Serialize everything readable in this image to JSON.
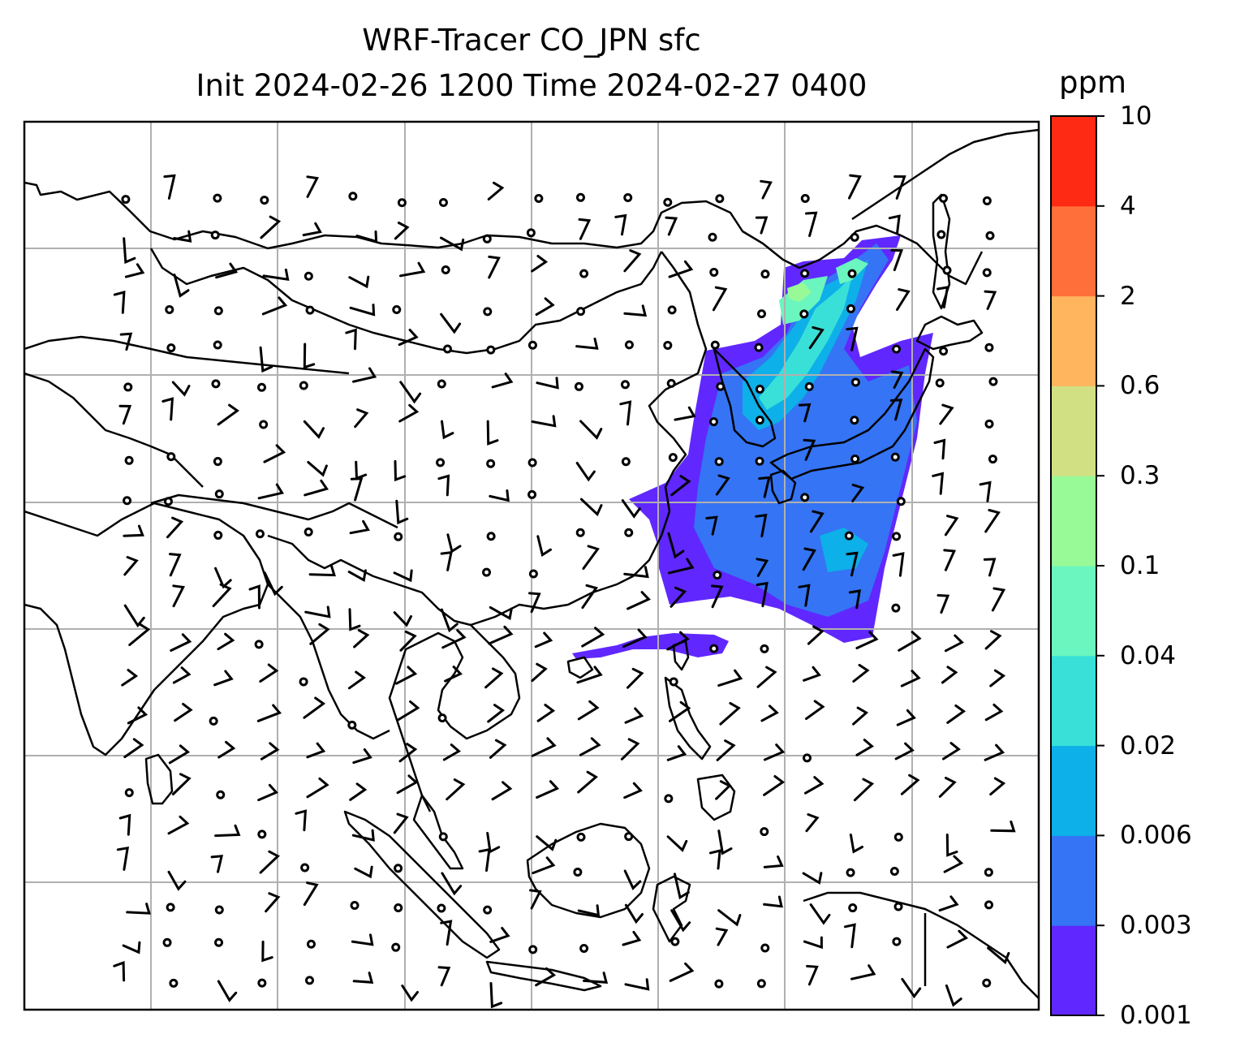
{
  "title": {
    "line1": "WRF-Tracer CO_JPN sfc",
    "line2": "Init 2024-02-26 1200 Time 2024-02-27 0400"
  },
  "colorbar": {
    "unit": "ppm",
    "levels": [
      "0.001",
      "0.003",
      "0.006",
      "0.02",
      "0.04",
      "0.1",
      "0.3",
      "0.6",
      "2",
      "4",
      "10"
    ],
    "colors": [
      "#6028ff",
      "#3574f4",
      "#0db0e8",
      "#38e0d8",
      "#6af6be",
      "#98fa96",
      "#d2e084",
      "#ffb45e",
      "#ff6f3a",
      "#ff2a14"
    ]
  },
  "map": {
    "gridlines": true,
    "coastline_color": "#000000",
    "grid_color": "#b0b0b0",
    "wind_barbs": "black, surface winds; circles mark calm"
  }
}
